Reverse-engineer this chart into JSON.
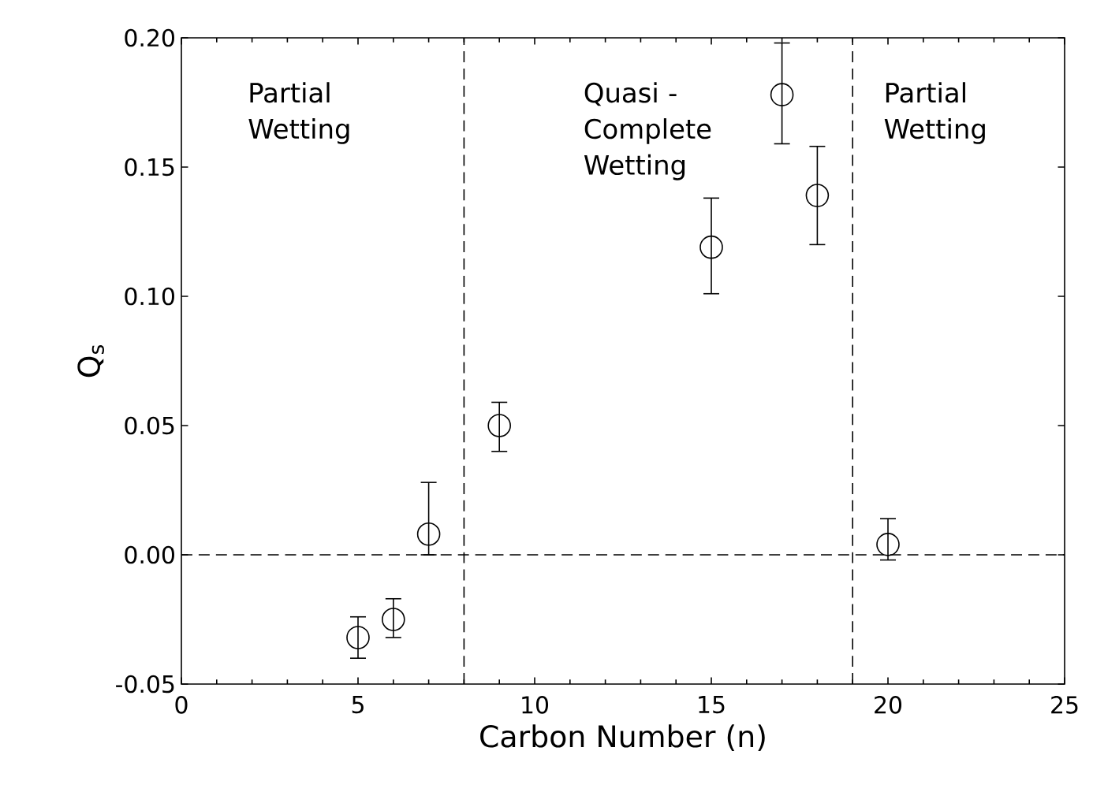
{
  "chart_data": {
    "type": "scatter",
    "xlabel": "Carbon Number (n)",
    "ylabel": "Q$_{s}$",
    "x": [
      5,
      6,
      7,
      9,
      15,
      17,
      18,
      20
    ],
    "values": [
      -0.032,
      -0.025,
      0.008,
      0.05,
      0.119,
      0.178,
      0.139,
      0.004
    ],
    "errors": [
      [
        -0.04,
        -0.024
      ],
      [
        -0.032,
        -0.017
      ],
      [
        0.0,
        0.028
      ],
      [
        0.04,
        0.059
      ],
      [
        0.101,
        0.138
      ],
      [
        0.159,
        0.198
      ],
      [
        0.12,
        0.158
      ],
      [
        -0.002,
        0.014
      ]
    ],
    "color": "#000000",
    "marker": "circle",
    "xlim": [
      0,
      25
    ],
    "xticks": [
      0,
      5,
      10,
      15,
      20,
      25
    ],
    "ylim": [
      -0.05,
      0.2
    ],
    "yticks": [
      {
        "value": -0.05,
        "label": "-0.05"
      },
      {
        "value": 0,
        "label": "0.00"
      },
      {
        "value": 0.05,
        "label": "0.05"
      },
      {
        "value": 0.1,
        "label": "0.10"
      },
      {
        "value": 0.15,
        "label": "0.15"
      },
      {
        "value": 0.2,
        "label": "0.20"
      }
    ],
    "ref_lines": [
      {
        "axis": "x",
        "value": 8,
        "line_style": "dashed"
      },
      {
        "axis": "x",
        "value": 19,
        "line_style": "dashed"
      },
      {
        "axis": "y",
        "value": 0,
        "line_style": "dashed"
      }
    ],
    "annotations": [
      "Partial Wetting",
      "Quasi - Complete Wetting",
      "Partial Wetting"
    ],
    "grid": false
  }
}
